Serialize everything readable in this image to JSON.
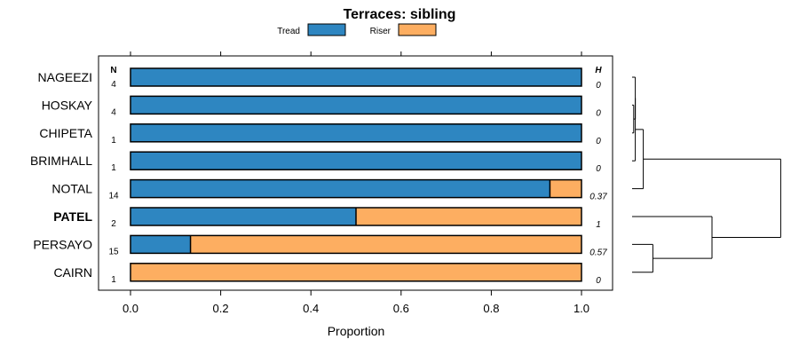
{
  "chart_data": {
    "type": "bar",
    "stacked": true,
    "orientation": "horizontal",
    "title": "Terraces: sibling",
    "xlabel": "Proportion",
    "ylabel": "",
    "xlim": [
      0,
      1
    ],
    "x_ticks": [
      "0.0",
      "0.2",
      "0.4",
      "0.6",
      "0.8",
      "1.0"
    ],
    "x_tick_values": [
      0,
      0.2,
      0.4,
      0.6,
      0.8,
      1.0
    ],
    "categories": [
      "NAGEEZI",
      "HOSKAY",
      "CHIPETA",
      "BRIMHALL",
      "NOTAL",
      "PATEL",
      "PERSAYO",
      "CAIRN"
    ],
    "highlight_category": "PATEL",
    "series": [
      {
        "name": "Tread",
        "color": "#2e86c1",
        "values": [
          1,
          1,
          1,
          1,
          0.93,
          0.5,
          0.133,
          0
        ]
      },
      {
        "name": "Riser",
        "color": "#fdae61",
        "values": [
          0,
          0,
          0,
          0,
          0.07,
          0.5,
          0.867,
          1
        ]
      }
    ],
    "n_header": "N",
    "n_values": [
      "4",
      "4",
      "1",
      "1",
      "14",
      "2",
      "15",
      "1"
    ],
    "h_header": "H",
    "h_values": [
      "0",
      "0",
      "0",
      "0",
      "0.37",
      "1",
      "0.57",
      "0"
    ],
    "legend": {
      "position": "top",
      "entries": [
        "Tread",
        "Riser"
      ]
    },
    "dendrogram": {
      "leaves": [
        "NAGEEZI",
        "HOSKAY",
        "CHIPETA",
        "BRIMHALL",
        "NOTAL",
        "PATEL",
        "PERSAYO",
        "CAIRN"
      ],
      "merges": [
        {
          "left": "HOSKAY",
          "right": "CHIPETA",
          "height": 0.01
        },
        {
          "left": "NAGEEZI",
          "right": [
            "HOSKAY",
            "CHIPETA"
          ],
          "height": 0.02
        },
        {
          "left": [
            "NAGEEZI",
            "HOSKAY",
            "CHIPETA"
          ],
          "right": "BRIMHALL",
          "height": 0.02
        },
        {
          "left": [
            "NAGEEZI",
            "HOSKAY",
            "CHIPETA",
            "BRIMHALL"
          ],
          "right": "NOTAL",
          "height": 0.07
        },
        {
          "left": "PERSAYO",
          "right": "CAIRN",
          "height": 0.13
        },
        {
          "left": "PATEL",
          "right": [
            "PERSAYO",
            "CAIRN"
          ],
          "height": 0.5
        },
        {
          "left": "group-1",
          "right": "group-2",
          "height": 0.93
        }
      ]
    }
  }
}
